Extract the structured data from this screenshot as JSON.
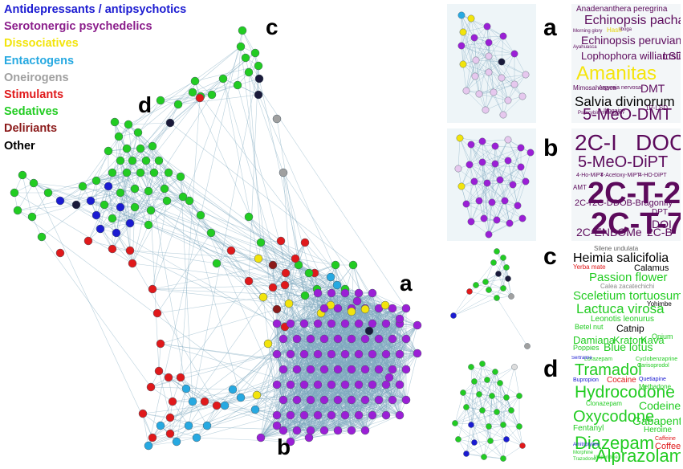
{
  "legend": [
    {
      "label": "Antidepressants / antipsychotics",
      "color": "#1b1bd1"
    },
    {
      "label": "Serotonergic psychedelics",
      "color": "#8b1e8b"
    },
    {
      "label": "Dissociatives",
      "color": "#f2e40c"
    },
    {
      "label": "Entactogens",
      "color": "#27a9e1"
    },
    {
      "label": "Oneirogens",
      "color": "#a0a0a0"
    },
    {
      "label": "Stimulants",
      "color": "#e0191b"
    },
    {
      "label": "Sedatives",
      "color": "#22cc22"
    },
    {
      "label": "Deliriants",
      "color": "#8b1a1a"
    },
    {
      "label": "Other",
      "color": "#000000"
    }
  ],
  "panel_labels": {
    "a": "a",
    "b": "b",
    "c": "c",
    "d": "d"
  },
  "colors": {
    "edge": "#7fa9bf",
    "node_stroke": "#4a5a66",
    "psychedelic": "#9b1fd6",
    "lavender": "#e6c8ee",
    "cloud_purple": "#5c0a5c"
  },
  "clouds": {
    "a": [
      {
        "text": "Anadenanthera peregrina",
        "color": "#5c0a5c"
      },
      {
        "text": "Echinopsis pachanoi",
        "color": "#5c0a5c"
      },
      {
        "text": "Morning glory",
        "color": "#5c0a5c"
      },
      {
        "text": "Hash",
        "color": "#e6d40a"
      },
      {
        "text": "Iboga",
        "color": "#5c0a5c"
      },
      {
        "text": "Echinopsis peruviana",
        "color": "#5c0a5c"
      },
      {
        "text": "Ayahuasca",
        "color": "#5c0a5c"
      },
      {
        "text": "Lophophora williamsii",
        "color": "#5c0a5c"
      },
      {
        "text": "LSD",
        "color": "#5c0a5c"
      },
      {
        "text": "Amanitas",
        "color": "#f5e50c"
      },
      {
        "text": "Mimosahuasca",
        "color": "#5c0a5c"
      },
      {
        "text": "Argyreia nervosa",
        "color": "#5c0a5c"
      },
      {
        "text": "DMT",
        "color": "#5c0a5c"
      },
      {
        "text": "Salvia divinorum",
        "color": "#000000"
      },
      {
        "text": "Ibogaine",
        "color": "#5c0a5c"
      },
      {
        "text": "1P-LSD",
        "color": "#5c0a5c"
      },
      {
        "text": "Psilocybin mushroom",
        "color": "#5c0a5c"
      },
      {
        "text": "5-MeO-DMT",
        "color": "#5c0a5c"
      }
    ],
    "b": [
      {
        "text": "2C-I",
        "color": "#5c0a5c"
      },
      {
        "text": "DOC",
        "color": "#5c0a5c"
      },
      {
        "text": "5-MeO-DiPT",
        "color": "#5c0a5c"
      },
      {
        "text": "4-Ho-MiPT",
        "color": "#5c0a5c"
      },
      {
        "text": "4-Acetoxy-MiPT",
        "color": "#5c0a5c"
      },
      {
        "text": "4-HO-DiPT",
        "color": "#5c0a5c"
      },
      {
        "text": "AMT",
        "color": "#5c0a5c"
      },
      {
        "text": "2C-T-2",
        "color": "#5c0a5c"
      },
      {
        "text": "2C-P",
        "color": "#5c0a5c"
      },
      {
        "text": "2C-D",
        "color": "#5c0a5c"
      },
      {
        "text": "DOB-Bragonfly",
        "color": "#5c0a5c"
      },
      {
        "text": "2C-T-7",
        "color": "#5c0a5c"
      },
      {
        "text": "DPT",
        "color": "#5c0a5c"
      },
      {
        "text": "DOI",
        "color": "#5c0a5c"
      },
      {
        "text": "2C-ENBOMe",
        "color": "#5c0a5c"
      },
      {
        "text": "2C-B",
        "color": "#5c0a5c"
      }
    ],
    "c": [
      {
        "text": "Silene undulata",
        "color": "#666666"
      },
      {
        "text": "Heimia salicifolia",
        "color": "#000000"
      },
      {
        "text": "Yerba mate",
        "color": "#e0191b"
      },
      {
        "text": "Calamus",
        "color": "#000000"
      },
      {
        "text": "Passion flower",
        "color": "#22cc22"
      },
      {
        "text": "Calea zacatechichi",
        "color": "#888888"
      },
      {
        "text": "Sceletium tortuosum",
        "color": "#22cc22"
      },
      {
        "text": "Yohimbe",
        "color": "#000000"
      },
      {
        "text": "Lactuca virosa",
        "color": "#22cc22"
      },
      {
        "text": "Leonotis leonurus",
        "color": "#22cc22"
      },
      {
        "text": "Betel nut",
        "color": "#22cc22"
      },
      {
        "text": "Catnip",
        "color": "#000000"
      },
      {
        "text": "Damiana",
        "color": "#22cc22"
      },
      {
        "text": "Opium",
        "color": "#22cc22"
      },
      {
        "text": "Kratom",
        "color": "#22cc22"
      },
      {
        "text": "Kava",
        "color": "#22cc22"
      },
      {
        "text": "Poppies",
        "color": "#22cc22"
      },
      {
        "text": "Blue lotus",
        "color": "#22cc22"
      }
    ],
    "d": [
      {
        "text": "Lorazepam",
        "color": "#22cc22"
      },
      {
        "text": "Cyclobenzaprine",
        "color": "#22cc22"
      },
      {
        "text": "Tramadol",
        "color": "#22cc22"
      },
      {
        "text": "Carisoprodol",
        "color": "#22cc22"
      },
      {
        "text": "Bupropion",
        "color": "#1b1bd1"
      },
      {
        "text": "Cocaine",
        "color": "#e0191b"
      },
      {
        "text": "Quetiapine",
        "color": "#1b1bd1"
      },
      {
        "text": "Methadone",
        "color": "#22cc22"
      },
      {
        "text": "Hydrocodone",
        "color": "#22cc22"
      },
      {
        "text": "Clonazepam",
        "color": "#22cc22"
      },
      {
        "text": "Codeine",
        "color": "#22cc22"
      },
      {
        "text": "Oxycodone",
        "color": "#22cc22"
      },
      {
        "text": "Gabapentin",
        "color": "#22cc22"
      },
      {
        "text": "Fentanyl",
        "color": "#22cc22"
      },
      {
        "text": "Sertraline",
        "color": "#1b1bd1"
      },
      {
        "text": "Heroine",
        "color": "#22cc22"
      },
      {
        "text": "Diazepam",
        "color": "#22cc22"
      },
      {
        "text": "Caffeine",
        "color": "#e0191b"
      },
      {
        "text": "Amitriptyline",
        "color": "#1b1bd1"
      },
      {
        "text": "Coffee",
        "color": "#e0191b"
      },
      {
        "text": "Morphine",
        "color": "#22cc22"
      },
      {
        "text": "Meperidine",
        "color": "#22cc22"
      },
      {
        "text": "Alprazolam",
        "color": "#22cc22"
      },
      {
        "text": "Trazodone",
        "color": "#22cc22"
      }
    ]
  }
}
